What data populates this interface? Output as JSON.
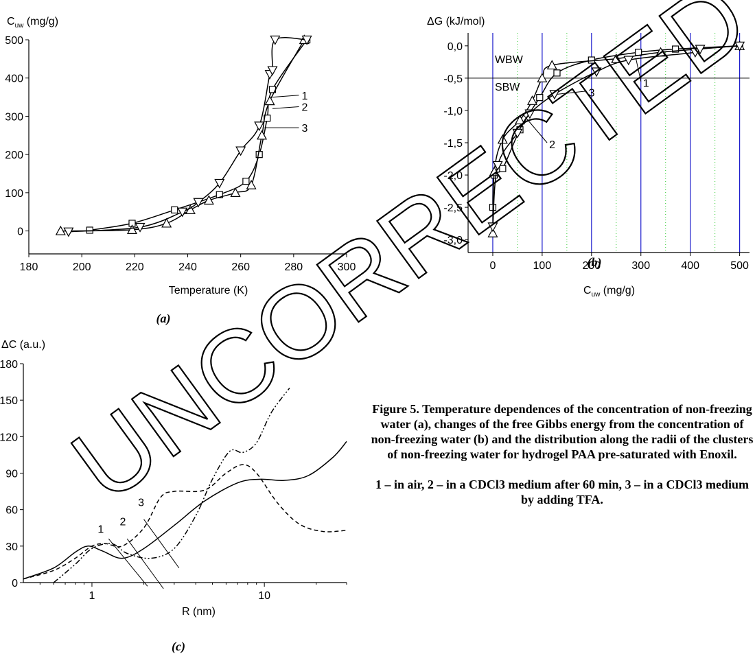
{
  "watermark": "UNCORRECTED",
  "caption": {
    "text": "Figure 5. Temperature dependences of the concentration of non-freezing water (a), changes of the free Gibbs energy from the concentration of non-freezing water (b) and the distribution along the radii of the clusters of non-freezing water for hydrogel PAA pre-saturated with Enoxil.",
    "legend": "1 – in air, 2 – in a CDCl3 medium after 60 min, 3 – in a CDCl3 medium by adding TFA."
  },
  "chart_data": [
    {
      "panel": "(a)",
      "type": "line",
      "ylabel_main": "C",
      "ylabel_sub": "uw",
      "ylabel_unit": " (mg/g)",
      "xlabel": "Temperature (K)",
      "xlim": [
        180,
        300
      ],
      "ylim": [
        -60,
        500
      ],
      "xticks": [
        180,
        200,
        220,
        240,
        260,
        280,
        300
      ],
      "yticks": [
        0,
        100,
        200,
        300,
        400,
        500
      ],
      "series": [
        {
          "name": "1",
          "marker": "square",
          "x": [
            203,
            219,
            235,
            252,
            262,
            267,
            270,
            272,
            285
          ],
          "y": [
            2,
            20,
            55,
            95,
            130,
            200,
            295,
            370,
            500
          ]
        },
        {
          "name": "2",
          "marker": "triangle-up",
          "x": [
            192,
            219,
            232,
            241,
            248,
            258,
            264,
            268,
            271,
            284
          ],
          "y": [
            0,
            3,
            20,
            55,
            80,
            100,
            120,
            250,
            340,
            500
          ]
        },
        {
          "name": "3",
          "marker": "triangle-down",
          "x": [
            195,
            222,
            238,
            244,
            252,
            260,
            267,
            271,
            272,
            273,
            285
          ],
          "y": [
            -2,
            10,
            50,
            75,
            125,
            210,
            275,
            410,
            420,
            500,
            500
          ]
        }
      ],
      "annotations": [
        "1",
        "2",
        "3"
      ]
    },
    {
      "panel": "(b)",
      "type": "line",
      "ylabel": "ΔG (kJ/mol)",
      "xlabel_main": "C",
      "xlabel_sub": "uw",
      "xlabel_unit": " (mg/g)",
      "xlim": [
        -50,
        520
      ],
      "ylim": [
        -3.2,
        0.2
      ],
      "xticks": [
        0,
        100,
        200,
        300,
        400,
        500
      ],
      "yticks": [
        0.0,
        -0.5,
        -1.0,
        -1.5,
        -2.0,
        -2.5,
        -3.0
      ],
      "ytick_labels": [
        "0,0",
        "-0,5",
        "-1,0",
        "-1,5",
        "-2,0",
        "-2,5",
        "-3,0"
      ],
      "hline": -0.5,
      "region_labels": [
        "WBW",
        "SBW"
      ],
      "series": [
        {
          "name": "1",
          "marker": "square",
          "x": [
            0,
            3,
            20,
            55,
            95,
            130,
            200,
            295,
            370,
            500
          ],
          "y": [
            -2.5,
            -2.0,
            -1.9,
            -1.3,
            -0.8,
            -0.42,
            -0.22,
            -0.1,
            -0.05,
            0.0
          ]
        },
        {
          "name": "2",
          "marker": "triangle-up",
          "x": [
            0,
            3,
            20,
            55,
            80,
            100,
            120,
            250,
            340,
            500
          ],
          "y": [
            -2.9,
            -1.95,
            -1.45,
            -1.15,
            -0.85,
            -0.5,
            -0.3,
            -0.2,
            -0.1,
            0.0
          ]
        },
        {
          "name": "3",
          "marker": "triangle-down",
          "x": [
            0,
            10,
            50,
            75,
            125,
            210,
            275,
            410,
            420,
            500
          ],
          "y": [
            -2.8,
            -1.85,
            -1.35,
            -1.05,
            -0.75,
            -0.4,
            -0.22,
            -0.1,
            -0.05,
            0.0
          ]
        }
      ],
      "annotations": [
        "1",
        "2",
        "3"
      ]
    },
    {
      "panel": "(c)",
      "type": "line",
      "ylabel": "ΔC (a.u.)",
      "xlabel": "R (nm)",
      "xscale": "log",
      "xlim": [
        0.4,
        30
      ],
      "ylim": [
        0,
        180
      ],
      "xticks": [
        1,
        10
      ],
      "yticks": [
        0,
        30,
        60,
        90,
        120,
        150,
        180
      ],
      "series": [
        {
          "name": "1",
          "style": "solid",
          "x": [
            0.4,
            0.6,
            0.8,
            0.95,
            1.15,
            1.5,
            2.0,
            3.0,
            4.5,
            7.0,
            9.5,
            13,
            18,
            25,
            30
          ],
          "y": [
            3,
            12,
            25,
            30,
            26,
            20,
            28,
            47,
            67,
            82,
            85,
            84,
            88,
            103,
            116
          ]
        },
        {
          "name": "2",
          "style": "dash-dot-dot",
          "x": [
            0.6,
            0.8,
            1.0,
            1.3,
            1.6,
            2.2,
            3.0,
            4.0,
            5.0,
            6.3,
            7.5,
            9.0,
            11,
            14
          ],
          "y": [
            0,
            15,
            28,
            32,
            24,
            20,
            28,
            55,
            85,
            108,
            107,
            115,
            140,
            160
          ]
        },
        {
          "name": "3",
          "style": "dashed",
          "x": [
            0.4,
            0.6,
            0.8,
            1.0,
            1.2,
            1.5,
            2.0,
            2.5,
            3.0,
            4.5,
            6.0,
            7.5,
            9.0,
            12,
            16,
            22,
            30
          ],
          "y": [
            3,
            10,
            20,
            30,
            32,
            30,
            45,
            70,
            75,
            76,
            90,
            97,
            90,
            65,
            48,
            42,
            43
          ]
        }
      ],
      "annotations": [
        "1",
        "2",
        "3"
      ]
    }
  ]
}
